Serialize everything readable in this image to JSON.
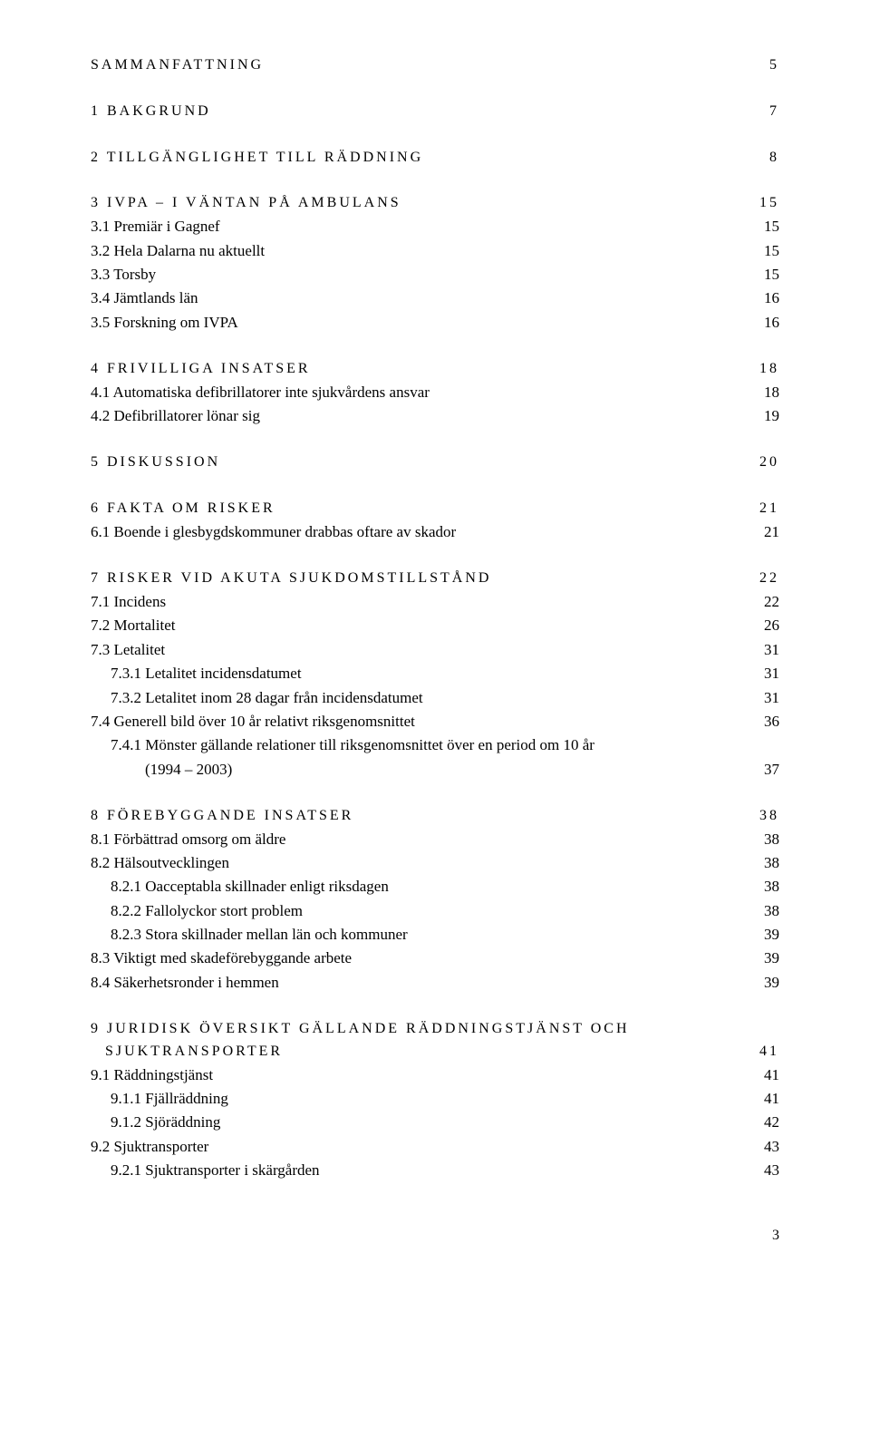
{
  "sections": [
    {
      "title": "SAMMANFATTNING",
      "page": "5",
      "items": []
    },
    {
      "title": "1 BAKGRUND",
      "page": "7",
      "items": []
    },
    {
      "title": "2 TILLGÄNGLIGHET TILL RÄDDNING",
      "page": "8",
      "items": []
    },
    {
      "title": "3 IVPA – I VÄNTAN PÅ AMBULANS",
      "page": "15",
      "items": [
        {
          "label": "3.1 Premiär i Gagnef",
          "page": "15",
          "indent": 0
        },
        {
          "label": "3.2 Hela Dalarna nu aktuellt",
          "page": "15",
          "indent": 0
        },
        {
          "label": "3.3 Torsby",
          "page": "15",
          "indent": 0
        },
        {
          "label": "3.4 Jämtlands län",
          "page": "16",
          "indent": 0
        },
        {
          "label": "3.5 Forskning om IVPA",
          "page": "16",
          "indent": 0
        }
      ]
    },
    {
      "title": "4 FRIVILLIGA INSATSER",
      "page": "18",
      "items": [
        {
          "label": "4.1 Automatiska defibrillatorer inte sjukvårdens ansvar",
          "page": "18",
          "indent": 0
        },
        {
          "label": "4.2 Defibrillatorer lönar sig",
          "page": "19",
          "indent": 0
        }
      ]
    },
    {
      "title": "5 DISKUSSION",
      "page": "20",
      "items": []
    },
    {
      "title": "6 FAKTA OM RISKER",
      "page": "21",
      "items": [
        {
          "label": "6.1 Boende i glesbygdskommuner drabbas oftare av skador",
          "page": "21",
          "indent": 0
        }
      ]
    },
    {
      "title": "7 RISKER VID AKUTA SJUKDOMSTILLSTÅND",
      "page": "22",
      "items": [
        {
          "label": "7.1 Incidens",
          "page": "22",
          "indent": 0
        },
        {
          "label": "7.2 Mortalitet",
          "page": "26",
          "indent": 0
        },
        {
          "label": "7.3 Letalitet",
          "page": "31",
          "indent": 0
        },
        {
          "label": "7.3.1 Letalitet incidensdatumet",
          "page": "31",
          "indent": 1
        },
        {
          "label": "7.3.2 Letalitet inom 28 dagar från incidensdatumet",
          "page": "31",
          "indent": 1
        },
        {
          "label": "7.4 Generell bild över 10 år relativt riksgenomsnittet",
          "page": "36",
          "indent": 0
        },
        {
          "label": "7.4.1 Mönster gällande relationer till riksgenomsnittet över en period om 10 år",
          "page": "",
          "indent": 1
        },
        {
          "label": "(1994 – 2003)",
          "page": "37",
          "indent": 2
        }
      ]
    },
    {
      "title": "8 FÖREBYGGANDE INSATSER",
      "page": "38",
      "items": [
        {
          "label": "8.1 Förbättrad omsorg om äldre",
          "page": "38",
          "indent": 0
        },
        {
          "label": "8.2 Hälsoutvecklingen",
          "page": "38",
          "indent": 0
        },
        {
          "label": "8.2.1 Oacceptabla skillnader enligt riksdagen",
          "page": "38",
          "indent": 1
        },
        {
          "label": "8.2.2 Fallolyckor stort problem",
          "page": "38",
          "indent": 1
        },
        {
          "label": "8.2.3 Stora skillnader mellan län och kommuner",
          "page": "39",
          "indent": 1
        },
        {
          "label": "8.3 Viktigt med skadeförebyggande arbete",
          "page": "39",
          "indent": 0
        },
        {
          "label": "8.4 Säkerhetsronder i hemmen",
          "page": "39",
          "indent": 0
        }
      ]
    },
    {
      "title": "9 JURIDISK ÖVERSIKT GÄLLANDE RÄDDNINGSTJÄNST OCH",
      "page": "",
      "title_line2": "SJUKTRANSPORTER",
      "page_line2": "41",
      "items": [
        {
          "label": "9.1 Räddningstjänst",
          "page": "41",
          "indent": 0
        },
        {
          "label": "9.1.1 Fjällräddning",
          "page": "41",
          "indent": 1
        },
        {
          "label": "9.1.2 Sjöräddning",
          "page": "42",
          "indent": 1
        },
        {
          "label": "9.2 Sjuktransporter",
          "page": "43",
          "indent": 0
        },
        {
          "label": "9.2.1 Sjuktransporter i skärgården",
          "page": "43",
          "indent": 1
        }
      ]
    }
  ],
  "footer_page": "3"
}
